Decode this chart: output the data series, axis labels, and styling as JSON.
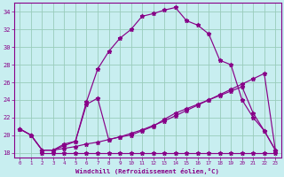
{
  "xlabel": "Windchill (Refroidissement éolien,°C)",
  "ylabel": "",
  "xlim": [
    -0.5,
    23.5
  ],
  "ylim": [
    17.5,
    35.0
  ],
  "yticks": [
    18,
    20,
    22,
    24,
    26,
    28,
    30,
    32,
    34
  ],
  "xticks": [
    0,
    1,
    2,
    3,
    4,
    5,
    6,
    7,
    8,
    9,
    10,
    11,
    12,
    13,
    14,
    15,
    16,
    17,
    18,
    19,
    20,
    21,
    22,
    23
  ],
  "bg_color": "#c8eef0",
  "line_color": "#880088",
  "grid_color": "#99ccbb",
  "series": [
    {
      "x": [
        2,
        3,
        4,
        5,
        6,
        7,
        8,
        9,
        10,
        11,
        12,
        13,
        14,
        15,
        16,
        17,
        18,
        19,
        20,
        21,
        22,
        23
      ],
      "y": [
        18.0,
        18.0,
        18.0,
        18.0,
        18.0,
        18.0,
        18.0,
        18.0,
        18.0,
        18.0,
        18.0,
        18.0,
        18.0,
        18.0,
        18.0,
        18.0,
        18.0,
        18.0,
        18.0,
        18.0,
        18.0,
        18.0
      ]
    },
    {
      "x": [
        0,
        1,
        2,
        3,
        4,
        5,
        6,
        7,
        8,
        9,
        10,
        11,
        12,
        13,
        14,
        15,
        16,
        17,
        18,
        19,
        20,
        21,
        22,
        23
      ],
      "y": [
        20.7,
        20.0,
        18.3,
        18.3,
        18.5,
        18.7,
        19.0,
        19.2,
        19.5,
        19.8,
        20.2,
        20.6,
        21.1,
        21.6,
        22.2,
        22.8,
        23.4,
        24.0,
        24.6,
        25.2,
        25.8,
        26.4,
        27.0,
        18.3
      ]
    },
    {
      "x": [
        0,
        1,
        2,
        3,
        4,
        5,
        6,
        7,
        8,
        9,
        10,
        11,
        12,
        13,
        14,
        15,
        16,
        17,
        18,
        19,
        20,
        21,
        22,
        23
      ],
      "y": [
        20.7,
        20.0,
        18.3,
        18.3,
        19.0,
        19.3,
        23.8,
        27.5,
        29.5,
        31.0,
        32.0,
        33.5,
        33.8,
        34.2,
        34.5,
        33.0,
        32.5,
        31.5,
        28.5,
        28.0,
        24.0,
        22.0,
        20.5,
        18.3
      ]
    },
    {
      "x": [
        0,
        1,
        2,
        3,
        4,
        5,
        6,
        7,
        8,
        9,
        10,
        11,
        12,
        13,
        14,
        15,
        16,
        17,
        18,
        19,
        20,
        21,
        22,
        23
      ],
      "y": [
        20.7,
        20.0,
        18.3,
        18.3,
        18.8,
        19.3,
        23.5,
        24.2,
        19.5,
        19.8,
        20.0,
        20.5,
        21.0,
        21.8,
        22.5,
        23.0,
        23.5,
        24.0,
        24.5,
        25.0,
        25.5,
        22.5,
        20.5,
        18.3
      ]
    }
  ]
}
